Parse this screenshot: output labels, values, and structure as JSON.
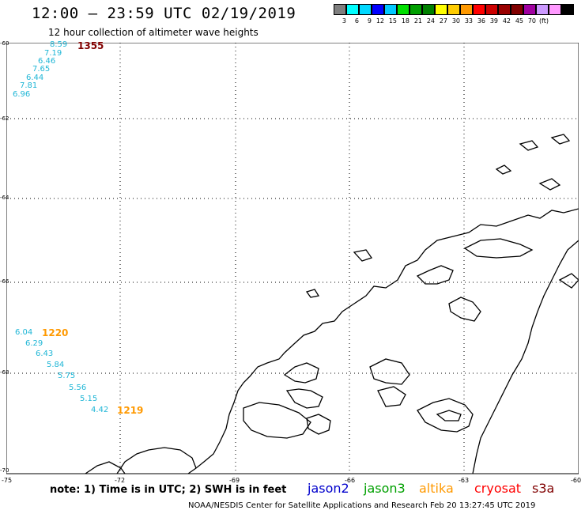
{
  "title": "12:00 — 23:59 UTC 02/19/2019",
  "subtitle": "12 hour collection of altimeter wave heights",
  "color_scale": {
    "colors": [
      "#7f7f7f",
      "#00ffff",
      "#00d8ff",
      "#0000ff",
      "#00c8ff",
      "#00e000",
      "#00a000",
      "#008000",
      "#ffff00",
      "#ffcc00",
      "#ff9900",
      "#ff0000",
      "#cc0000",
      "#990000",
      "#800000",
      "#a000a0",
      "#cc99ff",
      "#ff99ff",
      "#000000"
    ],
    "labels": [
      "3",
      "6",
      "9",
      "12",
      "15",
      "18",
      "21",
      "24",
      "27",
      "30",
      "33",
      "36",
      "39",
      "42",
      "45",
      "70",
      "(ft)"
    ]
  },
  "lat_labels": [
    "-60",
    "-62",
    "-64",
    "-66",
    "-68",
    "-70"
  ],
  "lon_labels": [
    "-75",
    "-72",
    "-69",
    "-66",
    "-63",
    "-60"
  ],
  "track_north": {
    "time_label": "1355",
    "time_color": "#800000",
    "values": [
      "8.59",
      "7.19",
      "6.46",
      "7.65",
      "6.44",
      "7.81",
      "6.96"
    ]
  },
  "track_south": {
    "time_label_1": "1220",
    "time_label_2": "1219",
    "time_color": "#ff9900",
    "values": [
      "6.04",
      "6.29",
      "6.43",
      "5.84",
      "5.75",
      "5.56",
      "5.15",
      "4.42"
    ]
  },
  "note": "note: 1) Time is in UTC; 2) SWH is in feet",
  "satellites": [
    {
      "name": "jason2",
      "color": "#0000cc"
    },
    {
      "name": "jason3",
      "color": "#00a000"
    },
    {
      "name": "altika",
      "color": "#ff9900"
    },
    {
      "name": "cryosat",
      "color": "#ff0000"
    },
    {
      "name": "s3a",
      "color": "#800000"
    }
  ],
  "footer": "NOAA/NESDIS Center for Satellite Applications and Research    Feb 20 13:27:45 UTC 2019"
}
